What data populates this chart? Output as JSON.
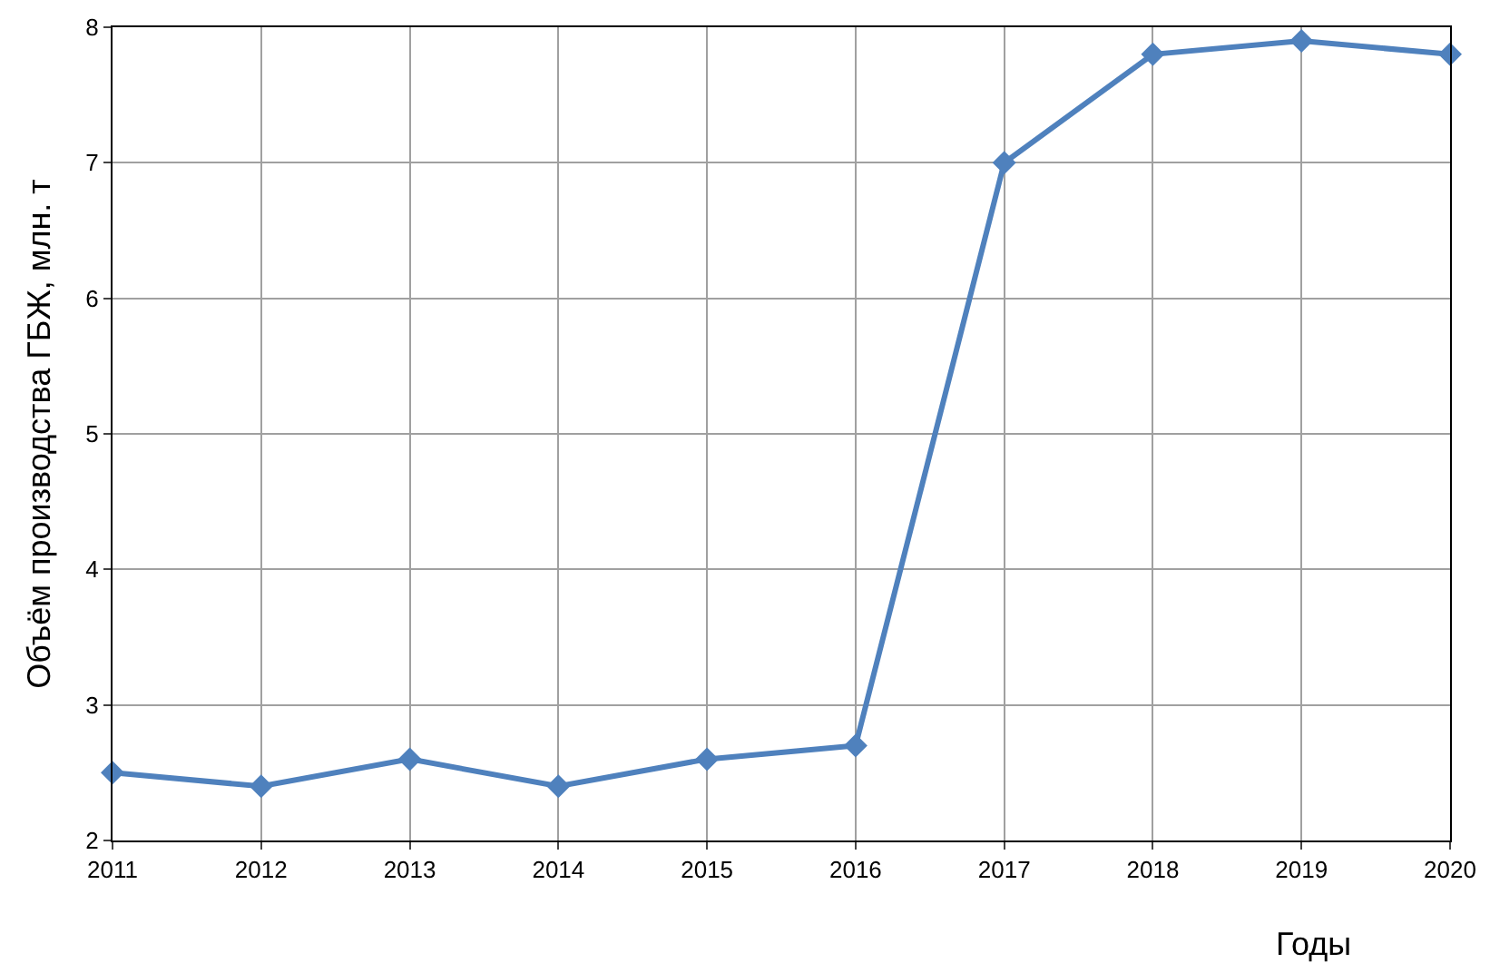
{
  "chart_data": {
    "type": "line",
    "xlabel": "Годы",
    "ylabel": "Объём производства ГБЖ, млн. т",
    "x": [
      2011,
      2012,
      2013,
      2014,
      2015,
      2016,
      2017,
      2018,
      2019,
      2020
    ],
    "series": [
      {
        "color": "#4f81bd",
        "values": [
          2.5,
          2.4,
          2.6,
          2.4,
          2.6,
          2.7,
          7.0,
          7.8,
          7.9,
          7.8
        ]
      }
    ],
    "xlim": [
      2011,
      2020
    ],
    "xticks": [
      2011,
      2012,
      2013,
      2014,
      2015,
      2016,
      2017,
      2018,
      2019,
      2020
    ],
    "ylim": [
      2,
      8
    ],
    "yticks": [
      2,
      3,
      4,
      5,
      6,
      7,
      8
    ],
    "grid": true,
    "marker": "diamond",
    "line_style": "solid"
  }
}
